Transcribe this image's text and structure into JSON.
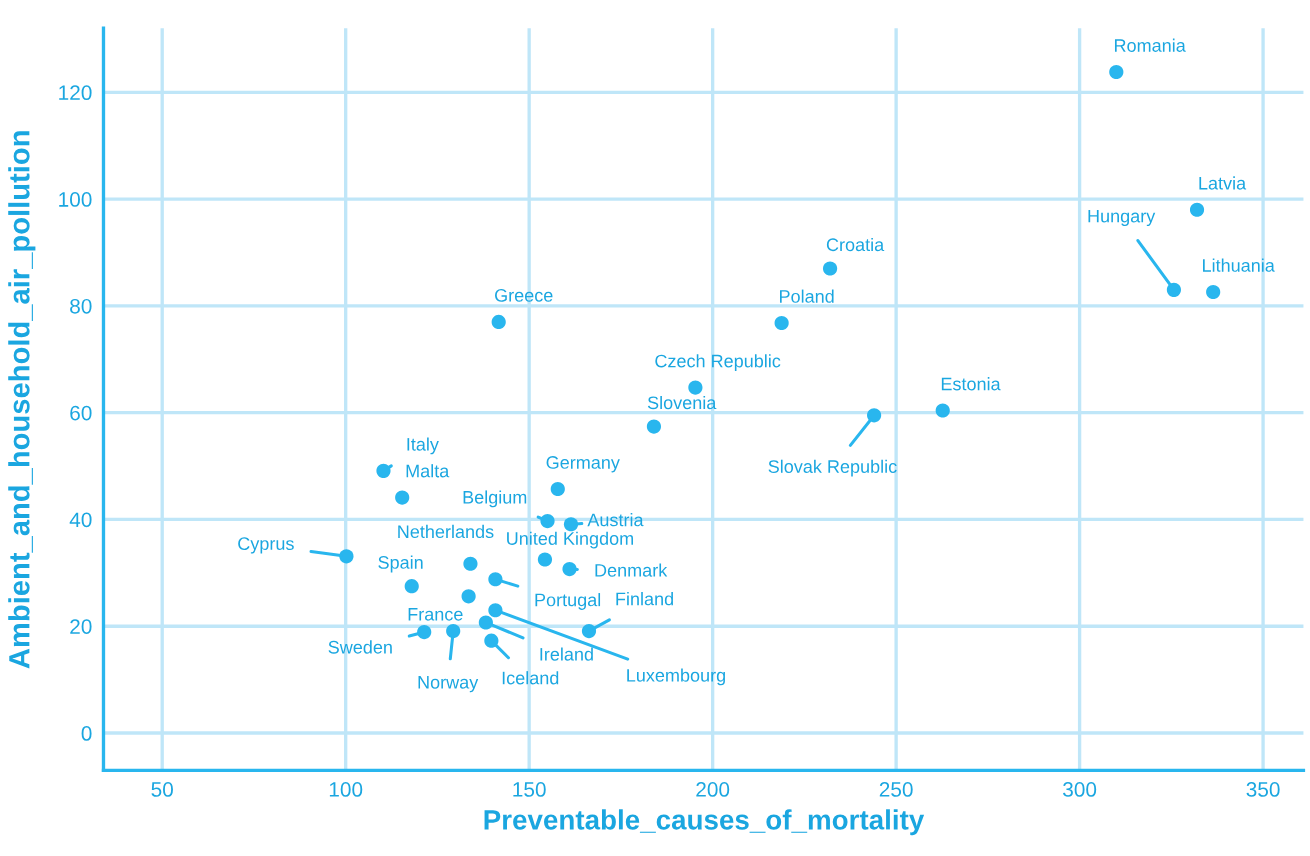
{
  "chart_data": {
    "type": "scatter",
    "xlabel": "Preventable_causes_of_mortality",
    "ylabel": "Ambient_and_household_air_pollution",
    "xlim": [
      34,
      361
    ],
    "ylim": [
      -7,
      132
    ],
    "xticks": [
      50,
      100,
      150,
      200,
      250,
      300,
      350
    ],
    "yticks": [
      0,
      20,
      40,
      60,
      80,
      100,
      120
    ],
    "grid": true,
    "marker": "circle",
    "series": [
      {
        "color": "#29b6ee",
        "x": [
          310,
          332,
          325.7,
          336.4,
          232,
          218.8,
          141.7,
          195.3,
          184,
          244,
          262.7,
          110.3,
          115.4,
          100.2,
          118,
          134,
          157.8,
          155,
          161.4,
          154.3,
          161,
          140.8,
          133.5,
          140.8,
          138.2,
          166.3,
          121.4,
          129.3,
          139.7
        ],
        "values": [
          123.8,
          98,
          83,
          82.6,
          87,
          76.8,
          77,
          64.7,
          57.4,
          59.5,
          60.4,
          49.1,
          44.1,
          33.1,
          27.5,
          31.7,
          45.7,
          39.7,
          39.1,
          32.5,
          30.7,
          28.8,
          25.6,
          23,
          20.7,
          19.1,
          18.9,
          19.1,
          17.3
        ]
      }
    ],
    "annotations": [
      {
        "text": "Romania",
        "x": 310,
        "y": 123.8
      },
      {
        "text": "Latvia",
        "x": 332,
        "y": 98
      },
      {
        "text": "Hungary",
        "x": 325.7,
        "y": 83
      },
      {
        "text": "Lithuania",
        "x": 336.4,
        "y": 82.6
      },
      {
        "text": "Croatia",
        "x": 232,
        "y": 87
      },
      {
        "text": "Poland",
        "x": 218.8,
        "y": 76.8
      },
      {
        "text": "Greece",
        "x": 141.7,
        "y": 77
      },
      {
        "text": "Czech Republic",
        "x": 195.3,
        "y": 64.7
      },
      {
        "text": "Slovenia",
        "x": 184,
        "y": 57.4
      },
      {
        "text": "Slovak Republic",
        "x": 244,
        "y": 59.5
      },
      {
        "text": "Estonia",
        "x": 262.7,
        "y": 60.4
      },
      {
        "text": "Italy",
        "x": 110.3,
        "y": 49.1
      },
      {
        "text": "Malta",
        "x": 115.4,
        "y": 44.1
      },
      {
        "text": "Cyprus",
        "x": 100.2,
        "y": 33.1
      },
      {
        "text": "Spain",
        "x": 118,
        "y": 27.5
      },
      {
        "text": "Netherlands",
        "x": 134,
        "y": 31.7
      },
      {
        "text": "Germany",
        "x": 157.8,
        "y": 45.7
      },
      {
        "text": "Belgium",
        "x": 155,
        "y": 39.7
      },
      {
        "text": "Austria",
        "x": 161.4,
        "y": 39.1
      },
      {
        "text": "United Kingdom",
        "x": 154.3,
        "y": 32.5
      },
      {
        "text": "Denmark",
        "x": 161,
        "y": 30.7
      },
      {
        "text": "Portugal",
        "x": 140.8,
        "y": 28.8
      },
      {
        "text": "France",
        "x": 133.5,
        "y": 25.6
      },
      {
        "text": "Luxembourg",
        "x": 140.8,
        "y": 23
      },
      {
        "text": "Ireland",
        "x": 138.2,
        "y": 20.7
      },
      {
        "text": "Finland",
        "x": 166.3,
        "y": 19.1
      },
      {
        "text": "Sweden",
        "x": 121.4,
        "y": 18.9
      },
      {
        "text": "Norway",
        "x": 129.3,
        "y": 19.1
      },
      {
        "text": "Iceland",
        "x": 139.7,
        "y": 17.3
      }
    ]
  }
}
